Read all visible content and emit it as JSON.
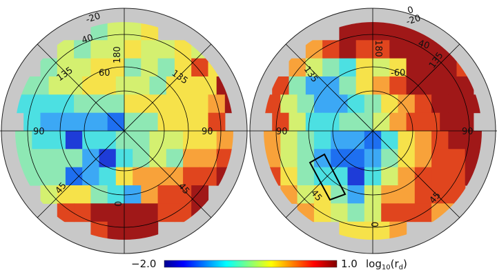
{
  "chart_data": {
    "type": "heatmap",
    "projection": "polar (hemisphere)",
    "panels": [
      {
        "name": "left",
        "labels": {
          "top": "-20",
          "r40": "40",
          "center_top": "180",
          "inner": "60",
          "upper_left": "135",
          "upper_right": "135",
          "left": "90",
          "right": "90",
          "lower_left": "45",
          "lower_right": "45",
          "bottom": "0"
        },
        "grid": [
          "....4556....",
          "..545565565.",
          ".45566454686",
          "4455665546669",
          "33334446666679",
          "322221446668",
          "4330334455667",
          "4444203454778",
          "4441236777889",
          ".5664327889.",
          "..889999889.",
          "....8999...."
        ]
      },
      {
        "name": "right",
        "labels": {
          "top": "0",
          "top2": "-20",
          "r40": "40",
          "center_top": "180",
          "inner": "-60",
          "upper_left": "135",
          "upper_right": "135",
          "left": "90",
          "right": "90",
          "lower_left": "45",
          "lower_right": "45",
          "bottom": "0"
        },
        "grid": [
          "....999999..",
          "..789889999.",
          ".75436569998",
          "842246789999",
          "8542234678999",
          "853344578899",
          "7543221367899",
          "7542112467889",
          "8643303578889",
          ".75642577888.",
          "..7654588877.",
          "....6667...."
        ],
        "annotation": "outlined quadrilateral region"
      }
    ],
    "colorbar": {
      "min": "−2.0",
      "max": "1.0",
      "label": "log10(r_d)",
      "label_base": "log",
      "label_sub": "10",
      "label_arg": "(r",
      "label_arg_sub": "d",
      "label_close": ")",
      "colormap": "jet",
      "range": [
        -2.0,
        1.0
      ]
    },
    "palette": [
      "#1e3cd8",
      "#1e6ff0",
      "#3ca8f5",
      "#4ce0e2",
      "#8ee8b4",
      "#d4f070",
      "#f6e24a",
      "#f8a23a",
      "#e0451e",
      "#a01818"
    ]
  }
}
